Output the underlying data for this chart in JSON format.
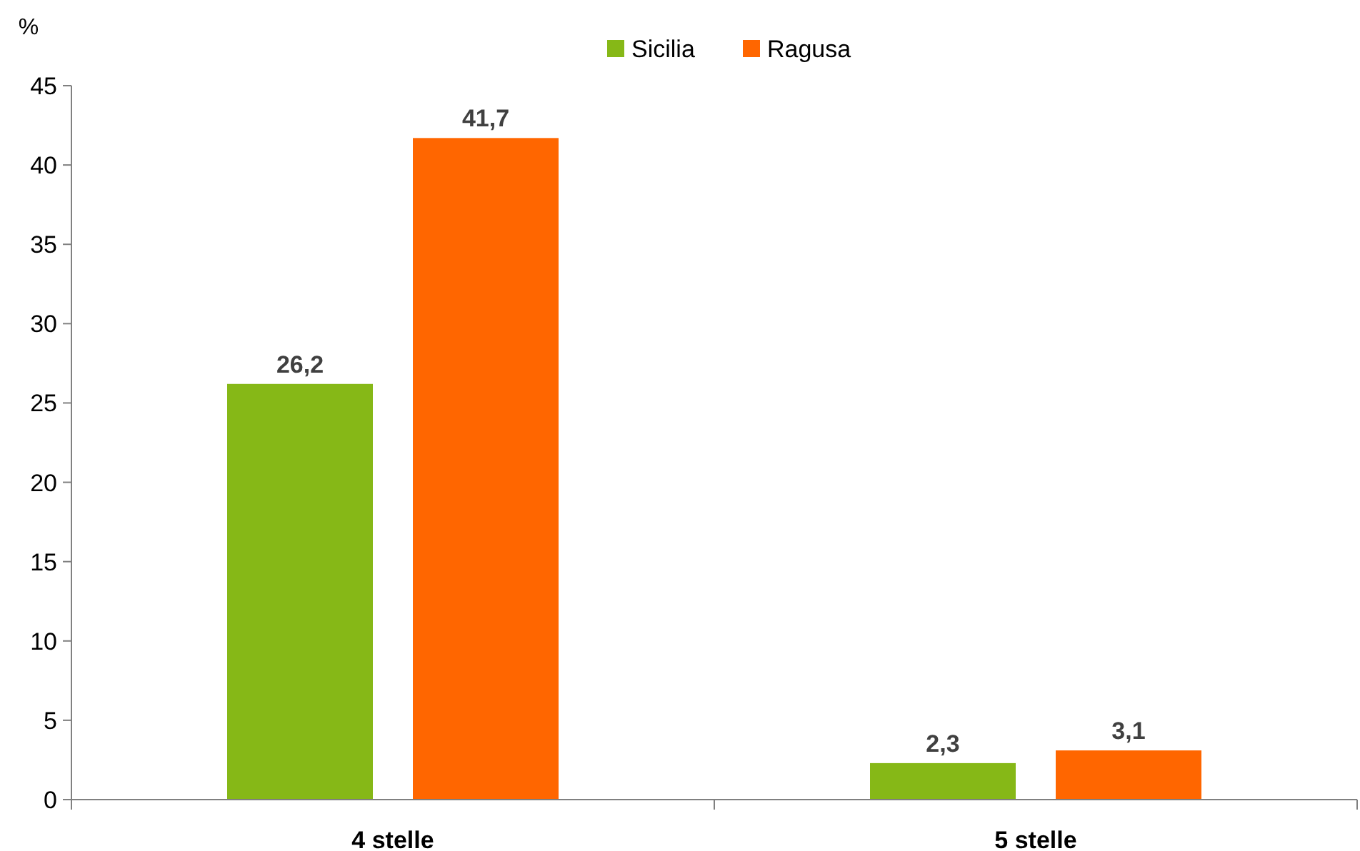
{
  "chart_data": {
    "type": "bar",
    "ylabel": "%",
    "categories": [
      "4 stelle",
      "5 stelle"
    ],
    "series": [
      {
        "name": "Sicilia",
        "color": "#86b817",
        "values": [
          26.2,
          2.3
        ],
        "value_labels": [
          "26,2",
          "2,3"
        ]
      },
      {
        "name": "Ragusa",
        "color": "#ff6600",
        "values": [
          41.7,
          3.1
        ],
        "value_labels": [
          "41,7",
          "3,1"
        ]
      }
    ],
    "ylim": [
      0,
      45
    ],
    "yticks": [
      0,
      5,
      10,
      15,
      20,
      25,
      30,
      35,
      40,
      45
    ],
    "grid": false,
    "legend": "top"
  }
}
